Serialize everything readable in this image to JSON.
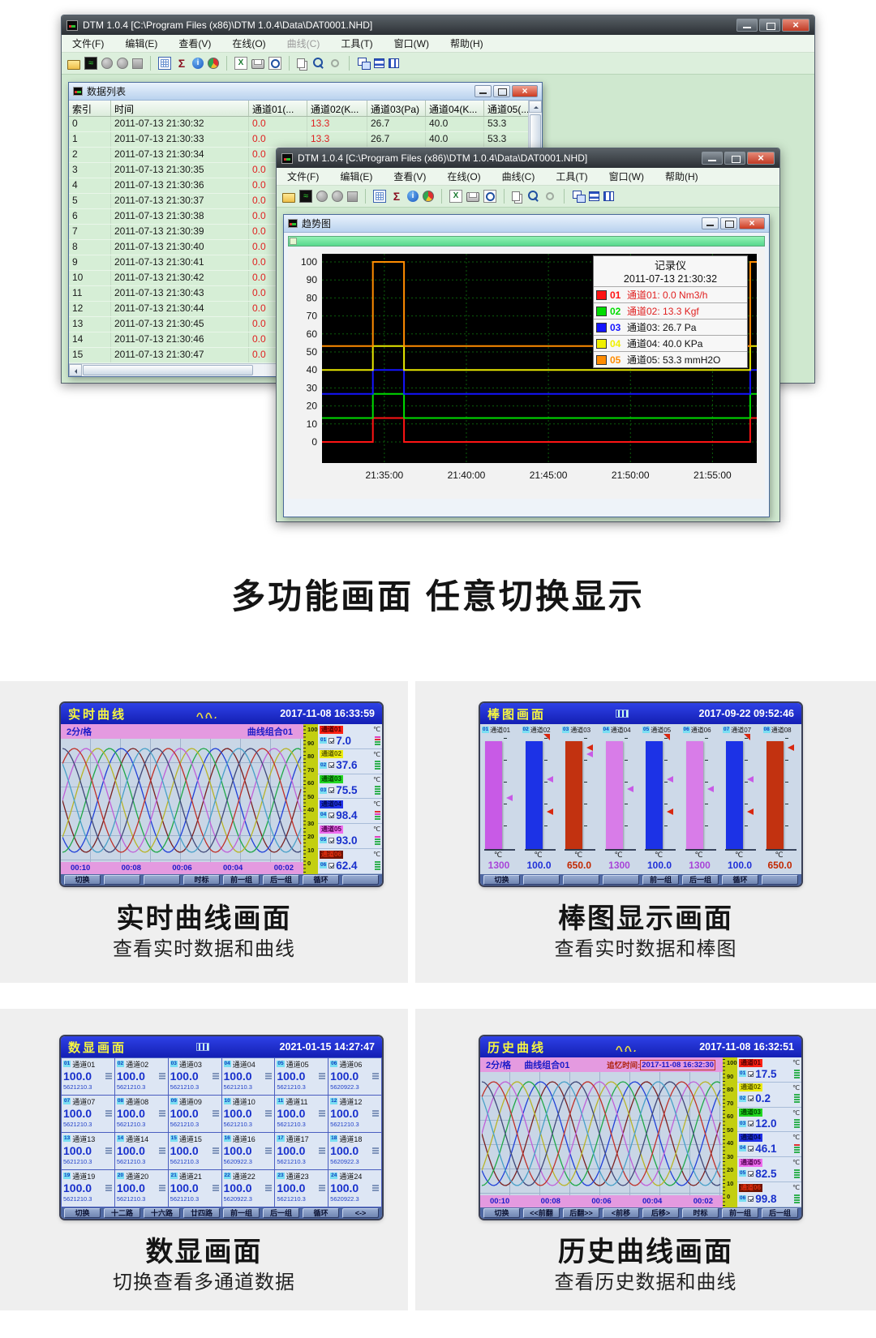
{
  "heading": "多功能画面  任意切换显示",
  "app": {
    "title": "DTM 1.0.4 [C:\\Program Files (x86)\\DTM 1.0.4\\Data\\DAT0001.NHD]",
    "menus": [
      "文件(F)",
      "编辑(E)",
      "查看(V)",
      "在线(O)",
      "曲线(C)",
      "工具(T)",
      "窗口(W)",
      "帮助(H)"
    ],
    "toolbar_groups": [
      [
        "open-file",
        "chart-view",
        "record-a",
        "record-b",
        "stop-record"
      ],
      [
        "data-table",
        "sum",
        "info",
        "pie-chart"
      ],
      [
        "export-excel",
        "print",
        "print-preview"
      ],
      [
        "copy",
        "zoom-in",
        "zoom-mini"
      ],
      [
        "cascade-windows",
        "tile-horizontal",
        "tile-vertical"
      ]
    ]
  },
  "datalist": {
    "title": "数据列表",
    "columns": [
      "索引",
      "时间",
      "通道01(...",
      "通道02(K...",
      "通道03(Pa)",
      "通道04(K...",
      "通道05(..."
    ],
    "rows": [
      [
        "0",
        "2011-07-13 21:30:32",
        "0.0",
        "13.3",
        "26.7",
        "40.0",
        "53.3"
      ],
      [
        "1",
        "2011-07-13 21:30:33",
        "0.0",
        "13.3",
        "26.7",
        "40.0",
        "53.3"
      ],
      [
        "2",
        "2011-07-13 21:30:34",
        "0.0"
      ],
      [
        "3",
        "2011-07-13 21:30:35",
        "0.0"
      ],
      [
        "4",
        "2011-07-13 21:30:36",
        "0.0"
      ],
      [
        "5",
        "2011-07-13 21:30:37",
        "0.0"
      ],
      [
        "6",
        "2011-07-13 21:30:38",
        "0.0"
      ],
      [
        "7",
        "2011-07-13 21:30:39",
        "0.0"
      ],
      [
        "8",
        "2011-07-13 21:30:40",
        "0.0"
      ],
      [
        "9",
        "2011-07-13 21:30:41",
        "0.0"
      ],
      [
        "10",
        "2011-07-13 21:30:42",
        "0.0"
      ],
      [
        "11",
        "2011-07-13 21:30:43",
        "0.0"
      ],
      [
        "12",
        "2011-07-13 21:30:44",
        "0.0"
      ],
      [
        "13",
        "2011-07-13 21:30:45",
        "0.0"
      ],
      [
        "14",
        "2011-07-13 21:30:46",
        "0.0"
      ],
      [
        "15",
        "2011-07-13 21:30:47",
        "0.0"
      ]
    ]
  },
  "trend": {
    "title": "趋势图",
    "legend_title": "记录仪",
    "legend_time": "2011-07-13 21:30:32",
    "legend": [
      {
        "id": "01",
        "color": "#ff1414",
        "label": "通道01: 0.0 Nm3/h",
        "alarm": true
      },
      {
        "id": "02",
        "color": "#00dc00",
        "label": "通道02: 13.3 Kgf",
        "alarm": true
      },
      {
        "id": "03",
        "color": "#1414ff",
        "label": "通道03: 26.7 Pa",
        "alarm": false
      },
      {
        "id": "04",
        "color": "#f0f000",
        "label": "通道04: 40.0 KPa",
        "alarm": false
      },
      {
        "id": "05",
        "color": "#ff8c00",
        "label": "通道05: 53.3 mmH2O",
        "alarm": false
      }
    ]
  },
  "chart_data": [
    {
      "type": "line",
      "title": "趋势图",
      "ylim": [
        0,
        100
      ],
      "y_ticks": [
        0,
        10,
        20,
        30,
        40,
        50,
        60,
        70,
        80,
        90,
        100
      ],
      "x_tick_labels": [
        "21:35:00",
        "21:40:00",
        "21:45:00",
        "21:50:00",
        "21:55:00"
      ],
      "x_tick_minutes": [
        5,
        10,
        15,
        20,
        25
      ],
      "x_range_minutes": [
        1.2,
        27.7
      ],
      "grid": "green dotted on black",
      "legend_position": "top-right",
      "series": [
        {
          "name": "通道01",
          "unit": "Nm3/h",
          "color": "#ff1414",
          "points": [
            [
              1.2,
              0
            ],
            [
              4.3,
              0
            ],
            [
              4.3,
              13.3
            ],
            [
              6.2,
              13.3
            ],
            [
              6.2,
              0
            ],
            [
              27.3,
              0
            ],
            [
              27.3,
              13.3
            ],
            [
              27.7,
              13.3
            ]
          ]
        },
        {
          "name": "通道02",
          "unit": "Kgf",
          "color": "#00dc00",
          "points": [
            [
              1.2,
              13.3
            ],
            [
              4.3,
              13.3
            ],
            [
              4.3,
              26.7
            ],
            [
              6.2,
              26.7
            ],
            [
              6.2,
              13.3
            ],
            [
              27.3,
              13.3
            ],
            [
              27.3,
              26.7
            ],
            [
              27.7,
              26.7
            ]
          ]
        },
        {
          "name": "通道03",
          "unit": "Pa",
          "color": "#1414ff",
          "points": [
            [
              1.2,
              26.7
            ],
            [
              4.3,
              26.7
            ],
            [
              4.3,
              40
            ],
            [
              6.2,
              40
            ],
            [
              6.2,
              26.7
            ],
            [
              27.3,
              26.7
            ],
            [
              27.3,
              40
            ],
            [
              27.7,
              40
            ]
          ]
        },
        {
          "name": "通道04",
          "unit": "KPa",
          "color": "#e8e800",
          "points": [
            [
              1.2,
              40
            ],
            [
              4.3,
              40
            ],
            [
              4.3,
              53.3
            ],
            [
              6.2,
              53.3
            ],
            [
              6.2,
              40
            ],
            [
              27.3,
              40
            ],
            [
              27.3,
              53.3
            ],
            [
              27.7,
              53.3
            ]
          ]
        },
        {
          "name": "通道05",
          "unit": "mmH2O",
          "color": "#ff8c00",
          "points": [
            [
              1.2,
              53.3
            ],
            [
              4.3,
              53.3
            ],
            [
              4.3,
              100
            ],
            [
              6.2,
              100
            ],
            [
              6.2,
              53.3
            ],
            [
              27.3,
              53.3
            ],
            [
              27.3,
              100
            ],
            [
              27.7,
              100
            ]
          ]
        }
      ]
    },
    {
      "type": "bar",
      "title": "棒图画面",
      "categories": [
        "通道01",
        "通道02",
        "通道03",
        "通道04",
        "通道05",
        "通道06",
        "通道07",
        "通道08"
      ],
      "values": [
        1300,
        100.0,
        650.0,
        1300,
        100.0,
        1300,
        100.0,
        650.0
      ],
      "unit": "℃"
    }
  ],
  "screens": {
    "curve_colors": [
      "#7a2020",
      "#2040d8",
      "#20a848",
      "#b8b428",
      "#c060d8",
      "#c03028",
      "#404878",
      "#48a0c8"
    ],
    "realtime": {
      "title": "实时曲线",
      "datetime": "2017-11-08 16:33:59",
      "interval": "2分/格",
      "group": "曲线组合01",
      "unit": "℃",
      "scale": [
        "100",
        "90",
        "80",
        "70",
        "60",
        "50",
        "40",
        "30",
        "20",
        "10",
        "0"
      ],
      "times": [
        "00:10",
        "00:08",
        "00:06",
        "00:04",
        "00:02"
      ],
      "channels": [
        {
          "no": "01",
          "name": "通道01",
          "value": "7.0",
          "chip": "#ff2012",
          "chip_text": "#500000",
          "stripes": [
            "#e040c0",
            "#e03030",
            "#30b050",
            "#30b050"
          ]
        },
        {
          "no": "02",
          "name": "通道02",
          "value": "37.6",
          "chip": "#ecec10",
          "chip_text": "#5a5a00",
          "stripes": [
            "#30b050",
            "#30b050",
            "#30b050",
            "#30b050"
          ]
        },
        {
          "no": "03",
          "name": "通道03",
          "value": "75.5",
          "chip": "#22d822",
          "chip_text": "#004a00",
          "stripes": [
            "#30b050",
            "#30b050",
            "#30b050",
            "#30b050"
          ]
        },
        {
          "no": "04",
          "name": "通道04",
          "value": "98.4",
          "chip": "#2030e8",
          "chip_text": "#000a50",
          "stripes": [
            "#e03030",
            "#e040c0",
            "#30b050",
            "#30b050"
          ]
        },
        {
          "no": "05",
          "name": "通道05",
          "value": "93.0",
          "chip": "#ee6cee",
          "chip_text": "#500050",
          "stripes": [
            "#e040c0",
            "#30b050",
            "#30b050",
            "#30b050"
          ]
        },
        {
          "no": "06",
          "name": "通道06",
          "value": "62.4",
          "chip": "#701400",
          "chip_text": "#e83010",
          "stripes": [
            "#30b050",
            "#30b050",
            "#30b050",
            "#30b050"
          ]
        }
      ],
      "buttons": [
        "切换",
        "",
        "",
        "时标",
        "前一组",
        "后一组",
        "循环",
        ""
      ]
    },
    "bar": {
      "title": "棒图画面",
      "datetime": "2017-09-22 09:52:46",
      "unit": "℃",
      "channels": [
        {
          "no": "01",
          "name": "通道01",
          "value": "1300",
          "bar": "#c85ae6",
          "vcolor": "#a844d8",
          "fill": 0.94,
          "markers": [
            {
              "color": "#c85ae6",
              "h": 0.42
            }
          ],
          "top_alarm": false
        },
        {
          "no": "02",
          "name": "通道02",
          "value": "100.0",
          "bar": "#1c32e6",
          "vcolor": "#2030d8",
          "fill": 0.94,
          "markers": [
            {
              "color": "#c85ae6",
              "h": 0.58
            },
            {
              "color": "#d82810",
              "h": 0.3
            }
          ],
          "top_alarm": true
        },
        {
          "no": "03",
          "name": "通道03",
          "value": "650.0",
          "bar": "#c23210",
          "vcolor": "#c22800",
          "fill": 0.94,
          "markers": [
            {
              "color": "#c85ae6",
              "h": 0.8
            },
            {
              "color": "#d82810",
              "h": 0.86
            }
          ],
          "top_alarm": false
        },
        {
          "no": "04",
          "name": "通道04",
          "value": "1300",
          "bar": "#d87ce8",
          "vcolor": "#a844d8",
          "fill": 0.94,
          "markers": [
            {
              "color": "#c85ae6",
              "h": 0.5
            }
          ],
          "top_alarm": false
        },
        {
          "no": "05",
          "name": "通道05",
          "value": "100.0",
          "bar": "#1c32e6",
          "vcolor": "#2030d8",
          "fill": 0.94,
          "markers": [
            {
              "color": "#c85ae6",
              "h": 0.58
            },
            {
              "color": "#d82810",
              "h": 0.3
            }
          ],
          "top_alarm": true
        },
        {
          "no": "06",
          "name": "通道06",
          "value": "1300",
          "bar": "#d87ce8",
          "vcolor": "#a844d8",
          "fill": 0.94,
          "markers": [
            {
              "color": "#c85ae6",
              "h": 0.5
            }
          ],
          "top_alarm": false
        },
        {
          "no": "07",
          "name": "通道07",
          "value": "100.0",
          "bar": "#1c32e6",
          "vcolor": "#2030d8",
          "fill": 0.94,
          "markers": [
            {
              "color": "#c85ae6",
              "h": 0.58
            },
            {
              "color": "#d82810",
              "h": 0.3
            }
          ],
          "top_alarm": true
        },
        {
          "no": "08",
          "name": "通道08",
          "value": "650.0",
          "bar": "#c23210",
          "vcolor": "#c22800",
          "fill": 0.94,
          "markers": [
            {
              "color": "#d82810",
              "h": 0.86
            }
          ],
          "top_alarm": false
        }
      ],
      "buttons": [
        "切换",
        "",
        "",
        "",
        "前一组",
        "后一组",
        "循环",
        ""
      ]
    },
    "digital": {
      "title": "数显画面",
      "datetime": "2021-01-15 14:27:47",
      "cells": [
        {
          "no": "01",
          "name": "通道01",
          "value": "100.0",
          "sub": "5621210.3"
        },
        {
          "no": "02",
          "name": "通道02",
          "value": "100.0",
          "sub": "5621210.3"
        },
        {
          "no": "03",
          "name": "通道03",
          "value": "100.0",
          "sub": "5621210.3"
        },
        {
          "no": "04",
          "name": "通道04",
          "value": "100.0",
          "sub": "5621210.3"
        },
        {
          "no": "05",
          "name": "通道05",
          "value": "100.0",
          "sub": "5621210.3"
        },
        {
          "no": "06",
          "name": "通道06",
          "value": "100.0",
          "sub": "5620922.3"
        },
        {
          "no": "07",
          "name": "通道07",
          "value": "100.0",
          "sub": "5621210.3"
        },
        {
          "no": "08",
          "name": "通道08",
          "value": "100.0",
          "sub": "5621210.3"
        },
        {
          "no": "09",
          "name": "通道09",
          "value": "100.0",
          "sub": "5621210.3"
        },
        {
          "no": "10",
          "name": "通道10",
          "value": "100.0",
          "sub": "5621210.3"
        },
        {
          "no": "11",
          "name": "通道11",
          "value": "100.0",
          "sub": "5621210.3"
        },
        {
          "no": "12",
          "name": "通道12",
          "value": "100.0",
          "sub": "5621210.3"
        },
        {
          "no": "13",
          "name": "通道13",
          "value": "100.0",
          "sub": "5621210.3"
        },
        {
          "no": "14",
          "name": "通道14",
          "value": "100.0",
          "sub": "5621210.3"
        },
        {
          "no": "15",
          "name": "通道15",
          "value": "100.0",
          "sub": "5621210.3"
        },
        {
          "no": "16",
          "name": "通道16",
          "value": "100.0",
          "sub": "5620922.3"
        },
        {
          "no": "17",
          "name": "通道17",
          "value": "100.0",
          "sub": "5621210.3"
        },
        {
          "no": "18",
          "name": "通道18",
          "value": "100.0",
          "sub": "5620922.3"
        },
        {
          "no": "19",
          "name": "通道19",
          "value": "100.0",
          "sub": "5621210.3"
        },
        {
          "no": "20",
          "name": "通道20",
          "value": "100.0",
          "sub": "5621210.3"
        },
        {
          "no": "21",
          "name": "通道21",
          "value": "100.0",
          "sub": "5621210.3"
        },
        {
          "no": "22",
          "name": "通道22",
          "value": "100.0",
          "sub": "5620922.3"
        },
        {
          "no": "23",
          "name": "通道23",
          "value": "100.0",
          "sub": "5621210.3"
        },
        {
          "no": "24",
          "name": "通道24",
          "value": "100.0",
          "sub": "5620922.3"
        }
      ],
      "buttons": [
        "切换",
        "十二路",
        "十六路",
        "廿四路",
        "前一组",
        "后一组",
        "循环",
        "<->"
      ]
    },
    "history": {
      "title": "历史曲线",
      "datetime": "2017-11-08 16:32:51",
      "interval": "2分/格",
      "group": "曲线组合01",
      "recall_label": "追忆时间:",
      "recall_time": "2017-11-08 16:32:30",
      "unit": "℃",
      "scale": [
        "100",
        "90",
        "80",
        "70",
        "60",
        "50",
        "40",
        "30",
        "20",
        "10",
        "0"
      ],
      "times": [
        "00:10",
        "00:08",
        "00:06",
        "00:04",
        "00:02"
      ],
      "channels": [
        {
          "no": "01",
          "name": "通道01",
          "value": "17.5",
          "chip": "#ff2012",
          "chip_text": "#500000",
          "stripes": [
            "#30b050",
            "#30b050",
            "#30b050",
            "#30b050"
          ]
        },
        {
          "no": "02",
          "name": "通道02",
          "value": "0.2",
          "chip": "#ecec10",
          "chip_text": "#5a5a00",
          "stripes": [
            "#30b050",
            "#30b050",
            "#30b050",
            "#30b050"
          ]
        },
        {
          "no": "03",
          "name": "通道03",
          "value": "12.0",
          "chip": "#22d822",
          "chip_text": "#004a00",
          "stripes": [
            "#30b050",
            "#30b050",
            "#30b050",
            "#30b050"
          ]
        },
        {
          "no": "04",
          "name": "通道04",
          "value": "46.1",
          "chip": "#2030e8",
          "chip_text": "#000a50",
          "stripes": [
            "#e03030",
            "#30b050",
            "#30b050",
            "#30b050"
          ]
        },
        {
          "no": "05",
          "name": "通道05",
          "value": "82.5",
          "chip": "#ee6cee",
          "chip_text": "#500050",
          "stripes": [
            "#30b050",
            "#30b050",
            "#30b050",
            "#30b050"
          ]
        },
        {
          "no": "06",
          "name": "通道06",
          "value": "99.8",
          "chip": "#701400",
          "chip_text": "#e83010",
          "stripes": [
            "#30b050",
            "#30b050",
            "#30b050",
            "#30b050"
          ]
        }
      ],
      "buttons": [
        "切换",
        "<<前翻",
        "后翻>>",
        "<前移",
        "后移>",
        "时标",
        "前一组",
        "后一组"
      ]
    }
  },
  "captions": [
    {
      "title": "实时曲线画面",
      "sub": "查看实时数据和曲线"
    },
    {
      "title": "棒图显示画面",
      "sub": "查看实时数据和棒图"
    },
    {
      "title": "数显画面",
      "sub": "切换查看多通道数据"
    },
    {
      "title": "历史曲线画面",
      "sub": "查看历史数据和曲线"
    }
  ]
}
